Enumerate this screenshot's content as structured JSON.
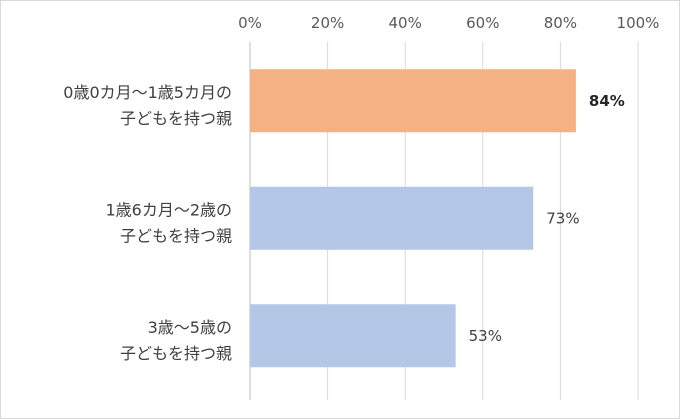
{
  "chart_data": {
    "type": "bar",
    "orientation": "horizontal",
    "title": "",
    "xlabel": "",
    "ylabel": "",
    "xlim": [
      0,
      100
    ],
    "x_ticks": [
      "0%",
      "20%",
      "40%",
      "60%",
      "80%",
      "100%"
    ],
    "x_tick_values": [
      0,
      20,
      40,
      60,
      80,
      100
    ],
    "x_axis_position": "top",
    "grid": true,
    "legend": "none",
    "categories": [
      {
        "line1": "0歳0カ月〜1歳5カ月の",
        "line2": "子どもを持つ親"
      },
      {
        "line1": "1歳6カ月〜2歳の",
        "line2": "子どもを持つ親"
      },
      {
        "line1": "3歳〜5歳の",
        "line2": "子どもを持つ親"
      }
    ],
    "values": [
      84,
      73,
      53
    ],
    "value_labels": [
      "84%",
      "73%",
      "53%"
    ],
    "emphasized_index": 0,
    "colors": [
      "#F4B183",
      "#B4C7E7",
      "#B4C7E7"
    ],
    "gridline_color": "#d9d9d9",
    "axis_color": "#bfbfbf"
  }
}
